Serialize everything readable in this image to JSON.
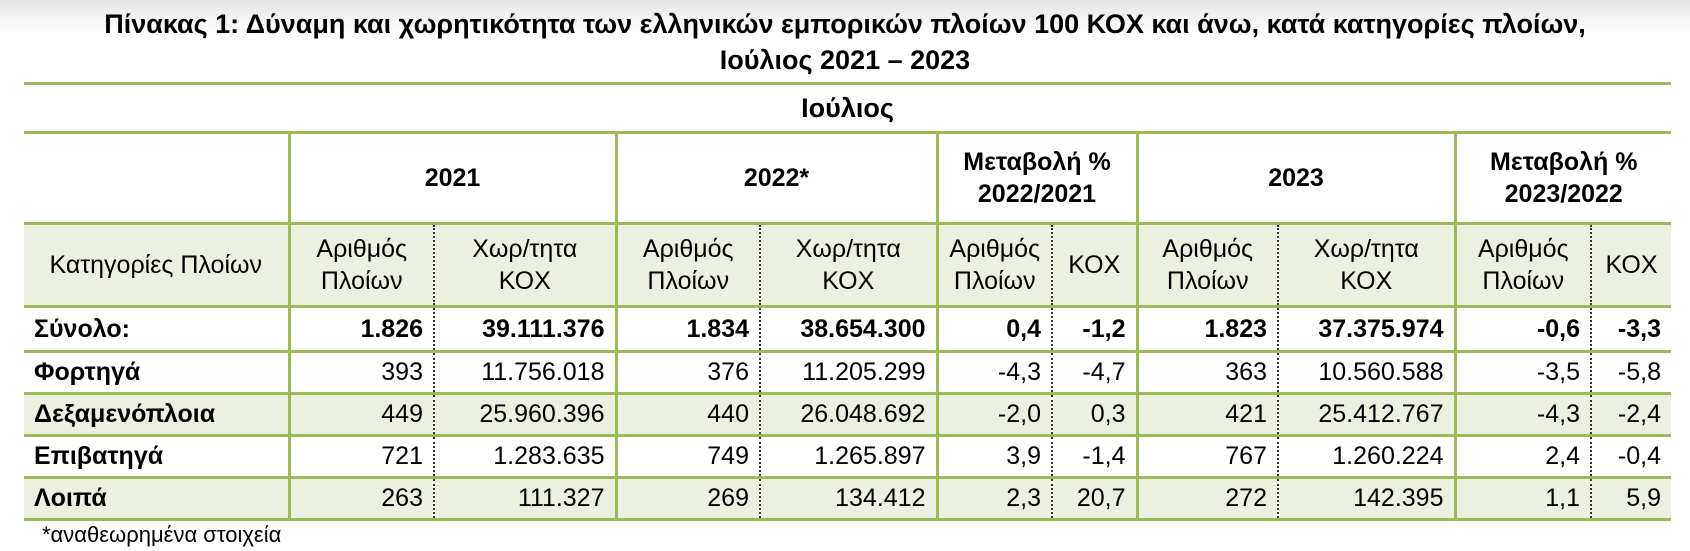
{
  "title": [
    "Πίνακας 1: Δύναμη και χωρητικότητα των ελληνικών εμπορικών πλοίων 100 ΚΟΧ και άνω, κατά κατηγορίες πλοίων,",
    "Ιούλιος 2021 – 2023"
  ],
  "table": {
    "super_header": "Ιούλιος",
    "groups": [
      "2021",
      "2022*",
      "Μεταβολή % 2022/2021",
      "2023",
      "Μεταβολή % 2023/2022"
    ],
    "subheaders": [
      "Κατηγορίες Πλοίων",
      "Αριθμός Πλοίων",
      "Χωρ/τητα ΚΟΧ",
      "Αριθμός Πλοίων",
      "Χωρ/τητα ΚΟΧ",
      "Αριθμός Πλοίων",
      "ΚΟΧ",
      "Αριθμός Πλοίων",
      "Χωρ/τητα ΚΟΧ",
      "Αριθμός Πλοίων",
      "ΚΟΧ"
    ],
    "rows": [
      [
        "Σύνολο:",
        "1.826",
        "39.111.376",
        "1.834",
        "38.654.300",
        "0,4",
        "-1,2",
        "1.823",
        "37.375.974",
        "-0,6",
        "-3,3"
      ],
      [
        "Φορτηγά",
        "393",
        "11.756.018",
        "376",
        "11.205.299",
        "-4,3",
        "-4,7",
        "363",
        "10.560.588",
        "-3,5",
        "-5,8"
      ],
      [
        "Δεξαμενόπλοια",
        "449",
        "25.960.396",
        "440",
        "26.048.692",
        "-2,0",
        "0,3",
        "421",
        "25.412.767",
        "-4,3",
        "-2,4"
      ],
      [
        "Επιβατηγά",
        "721",
        "1.283.635",
        "749",
        "1.265.897",
        "3,9",
        "-1,4",
        "767",
        "1.260.224",
        "2,4",
        "-0,4"
      ],
      [
        "Λοιπά",
        "263",
        "111.327",
        "269",
        "134.412",
        "2,3",
        "20,7",
        "272",
        "142.395",
        "1,1",
        "5,9"
      ]
    ]
  },
  "footnote": "*αναθεωρημένα στοιχεία"
}
